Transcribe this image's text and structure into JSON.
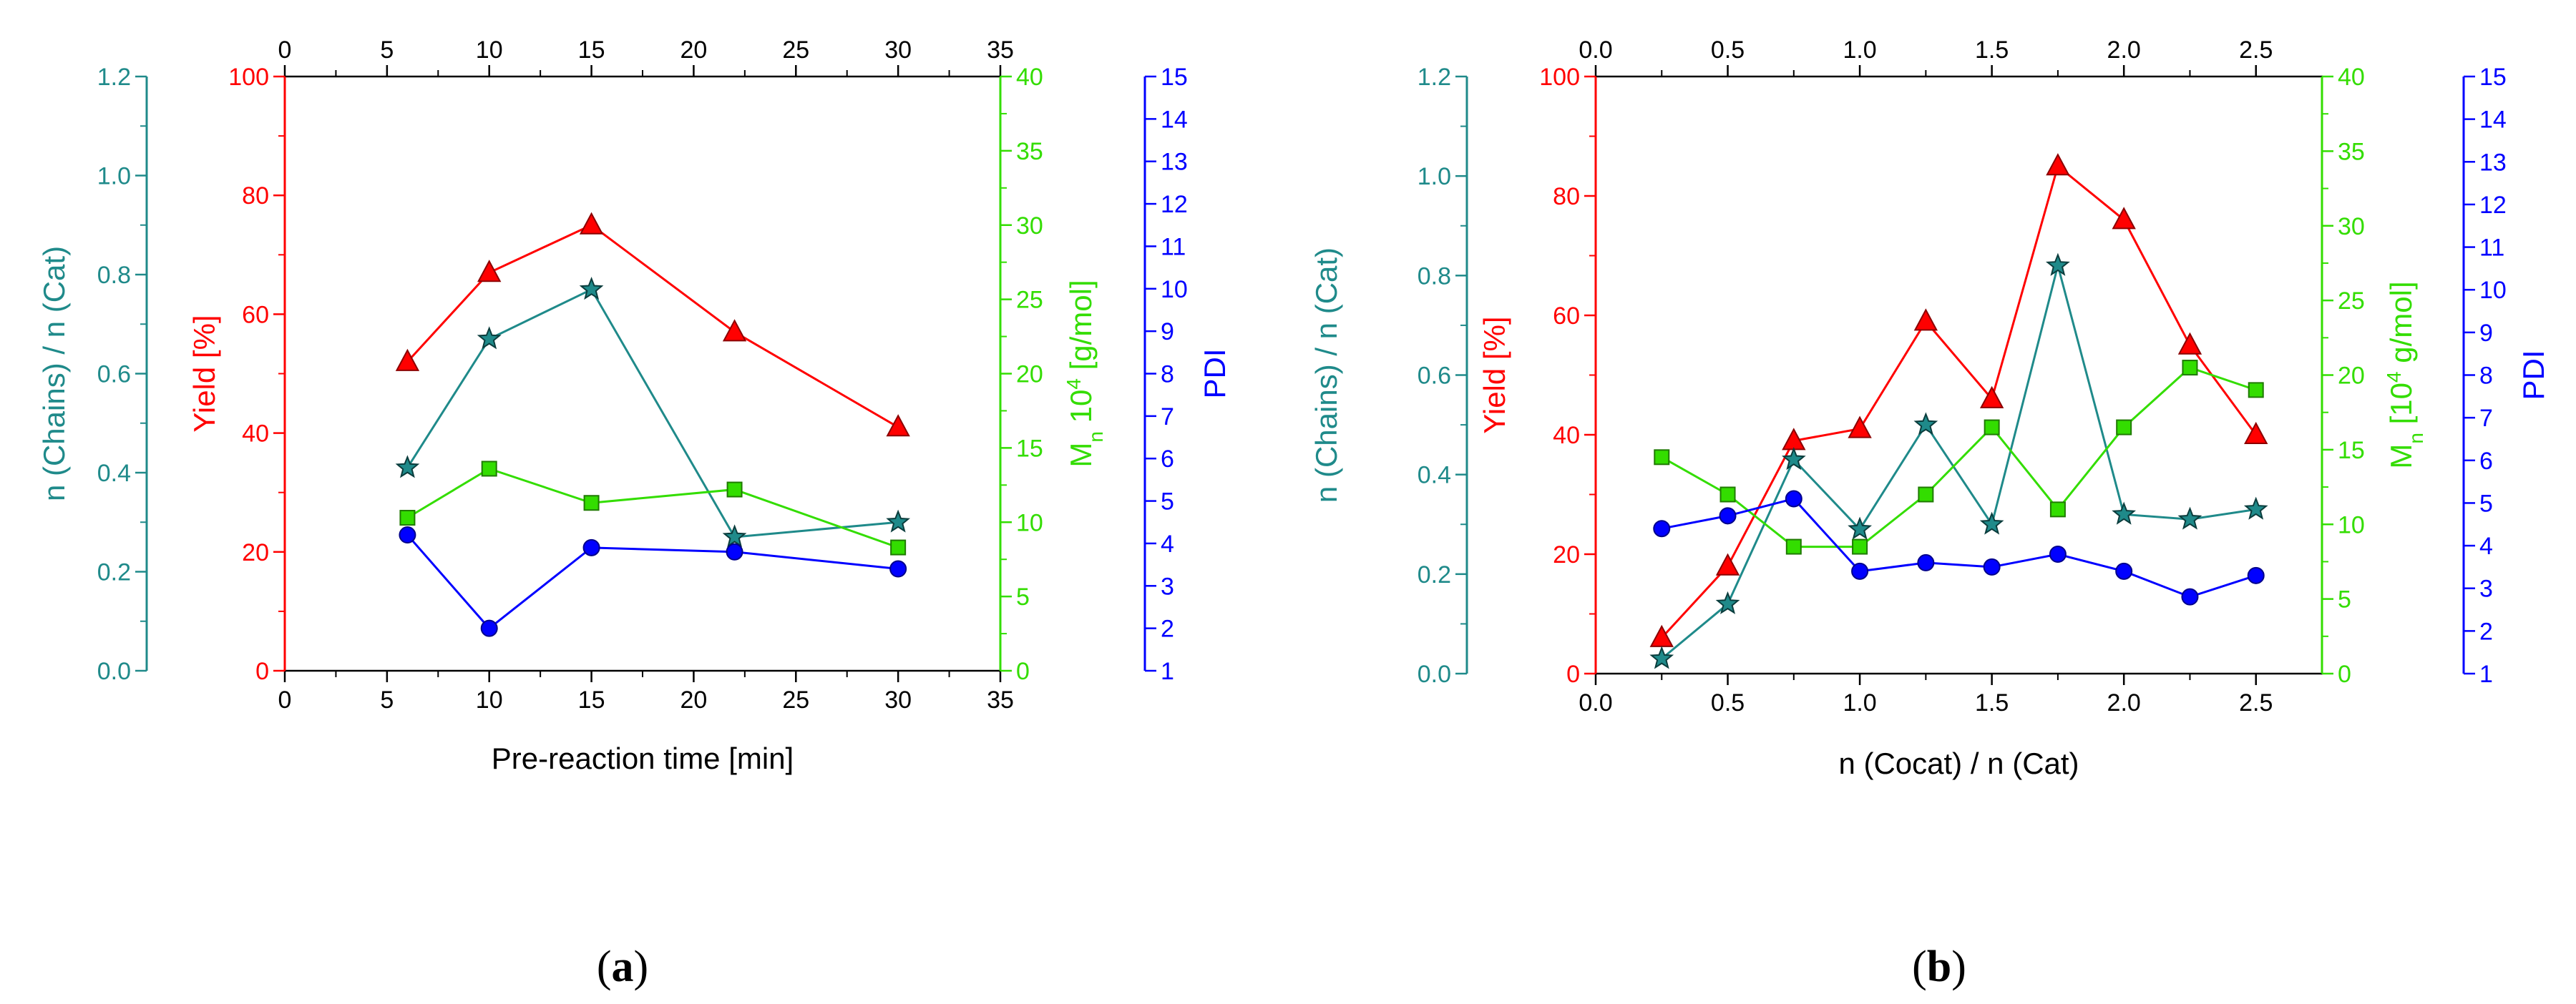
{
  "colors": {
    "teal": "#1f8a8a",
    "red": "#ff0000",
    "green": "#33dd00",
    "blue": "#0000ff",
    "axis": "#000000"
  },
  "chart_data": [
    {
      "type": "line",
      "panel_label": "(a)",
      "xlabel": "Pre-reaction time [min]",
      "xlim": [
        0,
        35
      ],
      "xticks": [
        0,
        5,
        10,
        15,
        20,
        25,
        30,
        35
      ],
      "axes": {
        "teal": {
          "label": "n (Chains) / n (Cat)",
          "lim": [
            0,
            1.2
          ],
          "ticks": [
            "0.0",
            "0.2",
            "0.4",
            "0.6",
            "0.8",
            "1.0",
            "1.2"
          ]
        },
        "red": {
          "label": "Yield [%]",
          "lim": [
            0,
            100
          ],
          "ticks": [
            "0",
            "20",
            "40",
            "60",
            "80",
            "100"
          ]
        },
        "green": {
          "label": "M",
          "label_sub": "n",
          "label_rest": " 10",
          "label_sup": "4",
          "label_unit": " [g/mol]",
          "lim": [
            0,
            40
          ],
          "ticks": [
            "0",
            "5",
            "10",
            "15",
            "20",
            "25",
            "30",
            "35",
            "40"
          ]
        },
        "blue": {
          "label": "PDI",
          "lim": [
            1,
            15
          ],
          "ticks": [
            "1",
            "2",
            "3",
            "4",
            "5",
            "6",
            "7",
            "8",
            "9",
            "10",
            "11",
            "12",
            "13",
            "14",
            "15"
          ]
        }
      },
      "series": [
        {
          "name": "Yield",
          "axis": "red",
          "marker": "triangle",
          "x": [
            6,
            10,
            15,
            22,
            30
          ],
          "values": [
            52,
            67,
            75,
            57,
            41
          ]
        },
        {
          "name": "n (Chains) / n (Cat)",
          "axis": "teal",
          "marker": "star",
          "x": [
            6,
            10,
            15,
            22,
            30
          ],
          "values": [
            0.41,
            0.67,
            0.77,
            0.27,
            0.3
          ]
        },
        {
          "name": "Mn",
          "axis": "green",
          "marker": "square",
          "x": [
            6,
            10,
            15,
            22,
            30
          ],
          "values": [
            10.3,
            13.6,
            11.3,
            12.2,
            8.3
          ]
        },
        {
          "name": "PDI",
          "axis": "blue",
          "marker": "circle",
          "x": [
            6,
            10,
            15,
            22,
            30
          ],
          "values": [
            4.2,
            2.0,
            3.9,
            3.8,
            3.4
          ]
        }
      ]
    },
    {
      "type": "line",
      "panel_label": "(b)",
      "xlabel": "n (Cocat) / n (Cat)",
      "xlim": [
        0,
        2.75
      ],
      "xticks": [
        0.0,
        0.5,
        1.0,
        1.5,
        2.0,
        2.5
      ],
      "axes": {
        "teal": {
          "label": "n (Chains) / n (Cat)",
          "lim": [
            0,
            1.2
          ],
          "ticks": [
            "0.0",
            "0.2",
            "0.4",
            "0.6",
            "0.8",
            "1.0",
            "1.2"
          ]
        },
        "red": {
          "label": "Yield [%]",
          "lim": [
            0,
            100
          ],
          "ticks": [
            "0",
            "20",
            "40",
            "60",
            "80",
            "100"
          ]
        },
        "green": {
          "label": "M",
          "label_sub": "n",
          "label_rest": " [10",
          "label_sup": "4",
          "label_unit": " g/mol]",
          "lim": [
            0,
            40
          ],
          "ticks": [
            "0",
            "5",
            "10",
            "15",
            "20",
            "25",
            "30",
            "35",
            "40"
          ]
        },
        "blue": {
          "label": "PDI",
          "lim": [
            1,
            15
          ],
          "ticks": [
            "1",
            "2",
            "3",
            "4",
            "5",
            "6",
            "7",
            "8",
            "9",
            "10",
            "11",
            "12",
            "13",
            "14",
            "15"
          ]
        }
      },
      "series": [
        {
          "name": "Yield",
          "axis": "red",
          "marker": "triangle",
          "x": [
            0.25,
            0.5,
            0.75,
            1.0,
            1.25,
            1.5,
            1.75,
            2.0,
            2.25,
            2.5
          ],
          "values": [
            6,
            18,
            39,
            41,
            59,
            46,
            85,
            76,
            55,
            40
          ]
        },
        {
          "name": "n (Chains) / n (Cat)",
          "axis": "teal",
          "marker": "star",
          "x": [
            0.25,
            0.5,
            0.75,
            1.0,
            1.25,
            1.5,
            1.75,
            2.0,
            2.25,
            2.5
          ],
          "values": [
            0.03,
            0.14,
            0.43,
            0.29,
            0.5,
            0.3,
            0.82,
            0.32,
            0.31,
            0.33
          ]
        },
        {
          "name": "Mn",
          "axis": "green",
          "marker": "square",
          "x": [
            0.25,
            0.5,
            0.75,
            1.0,
            1.25,
            1.5,
            1.75,
            2.0,
            2.25,
            2.5
          ],
          "values": [
            14.5,
            12.0,
            8.5,
            8.5,
            12.0,
            16.5,
            11.0,
            16.5,
            20.5,
            19.0
          ]
        },
        {
          "name": "PDI",
          "axis": "blue",
          "marker": "circle",
          "x": [
            0.25,
            0.5,
            0.75,
            1.0,
            1.25,
            1.5,
            1.75,
            2.0,
            2.25,
            2.5
          ],
          "values": [
            4.4,
            4.7,
            5.1,
            3.4,
            3.6,
            3.5,
            3.8,
            3.4,
            2.8,
            3.3
          ]
        }
      ]
    }
  ]
}
